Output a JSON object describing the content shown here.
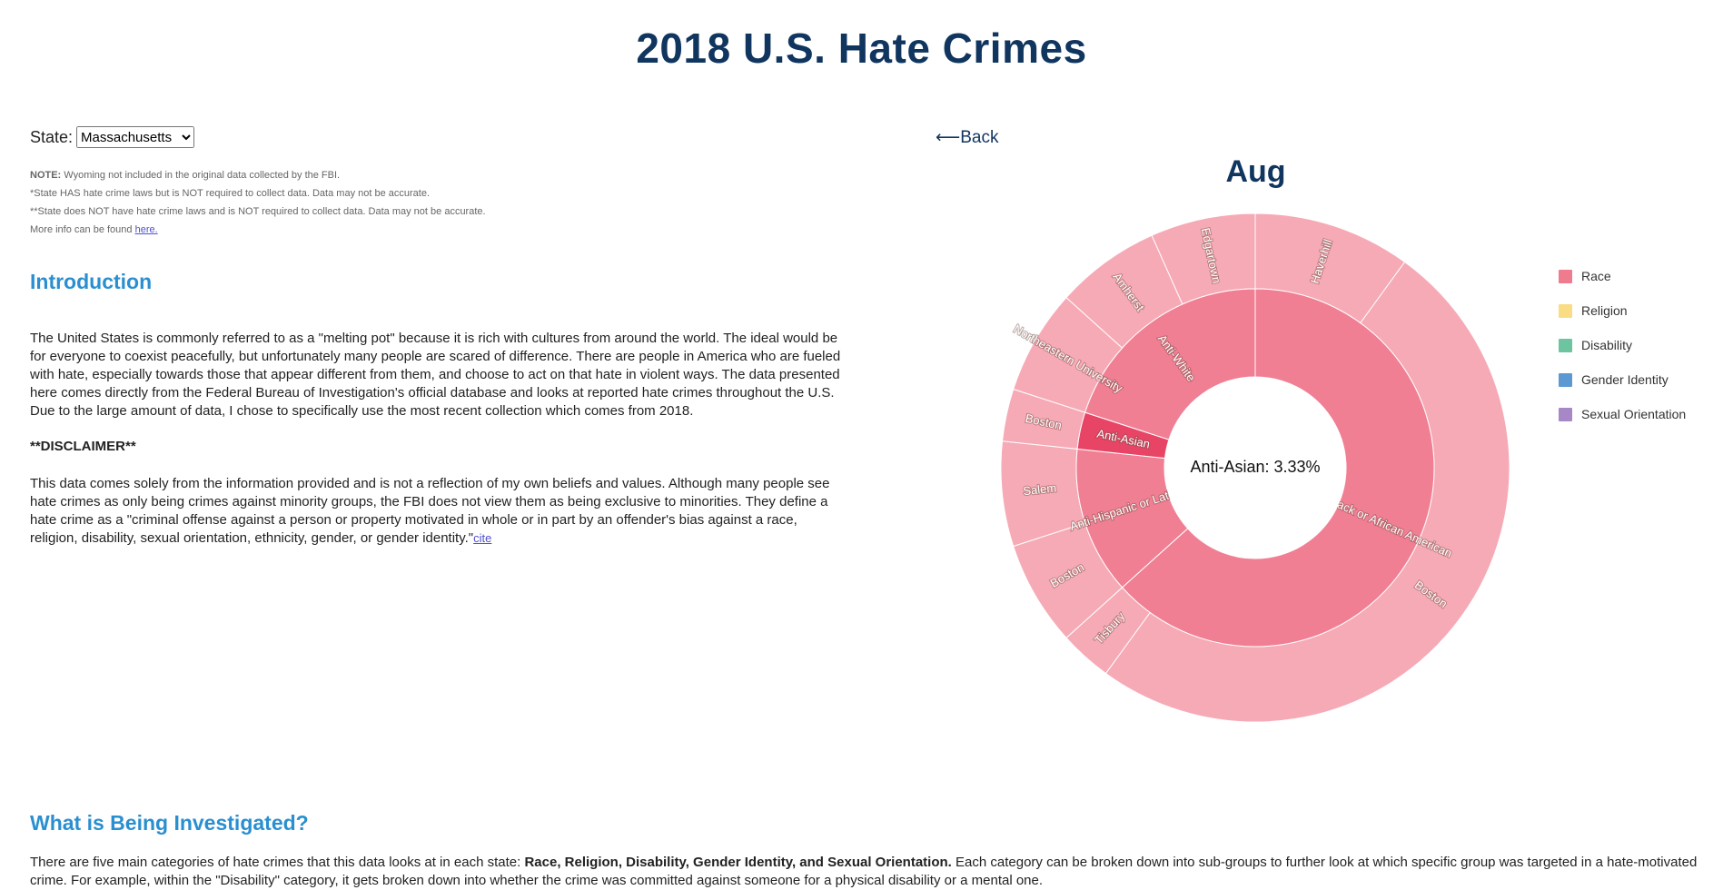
{
  "header": {
    "title": "2018 U.S. Hate Crimes"
  },
  "state_selector": {
    "label": "State:",
    "selected": "Massachusetts"
  },
  "notes": {
    "note_label": "NOTE:",
    "note_text": " Wyoming not included in the original data collected by the FBI.",
    "line2": "*State HAS hate crime laws but is NOT required to collect data. Data may not be accurate.",
    "line3": "**State does NOT have hate crime laws and is NOT required to collect data. Data may not be accurate.",
    "line4": "More info can be found ",
    "link": "here."
  },
  "intro": {
    "heading": "Introduction",
    "paragraph": "The United States is commonly referred to as a \"melting pot\" because it is rich with cultures from around the world. The ideal would be for everyone to coexist peacefully, but unfortunately many people are scared of difference. There are people in America who are fueled with hate, especially towards those that appear different from them, and choose to act on that hate in violent ways. The data presented here comes directly from the Federal Bureau of Investigation's official database and looks at reported hate crimes throughout the U.S. Due to the large amount of data, I chose to specifically use the most recent collection which comes from 2018.",
    "disclaimer": "**DISCLAIMER**",
    "disclaimer_text": "This data comes solely from the information provided and is not a reflection of my own beliefs and values. Although many people see hate crimes as only being crimes against minority groups, the FBI does not view them as being exclusive to minorities. They define a hate crime as a \"criminal offense against a person or property motivated in whole or in part by an offender's bias against a race, religion, disability, sexual orientation, ethnicity, gender, or gender identity.\"",
    "cite": "cite"
  },
  "investigated": {
    "heading": "What is Being Investigated?",
    "p_start": "There are five main categories of hate crimes that this data looks at in each state: ",
    "p_bold": "Race, Religion, Disability, Gender Identity, and Sexual Orientation.",
    "p_end": " Each category can be broken down into sub-groups to further look at which specific group was targeted in a hate-motivated crime. For example, within the \"Disability\" category, it gets broken down into whether the crime was committed against someone for a physical disability or a mental one."
  },
  "nav": {
    "back": "⟵Back"
  },
  "colors": {
    "inner_ring": "#f07f93",
    "inner_highlight": "#e84466",
    "outer_ring": "#f6aab6",
    "title_navy": "#10355e",
    "heading_blue": "#2a8fd0"
  },
  "legend": [
    {
      "label": "Race",
      "color": "#ef7b8e"
    },
    {
      "label": "Religion",
      "color": "#f9dc84"
    },
    {
      "label": "Disability",
      "color": "#6cc5a0"
    },
    {
      "label": "Gender Identity",
      "color": "#5c98d2"
    },
    {
      "label": "Sexual Orientation",
      "color": "#a887c6"
    }
  ],
  "chart_data": {
    "type": "sunburst",
    "title": "Aug",
    "center_label": "Anti-Asian: 3.33%",
    "category": "Race",
    "inner": [
      {
        "name": "Anti-Black or African American",
        "value": 19,
        "highlight": false
      },
      {
        "name": "Anti-Hispanic or Latino",
        "value": 4,
        "highlight": false
      },
      {
        "name": "Anti-Asian",
        "value": 1,
        "highlight": true
      },
      {
        "name": "Anti-White",
        "value": 6,
        "highlight": false
      }
    ],
    "outer": [
      {
        "name": "Haverhill",
        "parent": "Anti-Black or African American",
        "value": 3
      },
      {
        "name": "Boston",
        "parent": "Anti-Black or African American",
        "value": 15
      },
      {
        "name": "Tisbury",
        "parent": "Anti-Black or African American",
        "value": 1
      },
      {
        "name": "Boston",
        "parent": "Anti-Hispanic or Latino",
        "value": 2
      },
      {
        "name": "Salem",
        "parent": "Anti-Hispanic or Latino",
        "value": 2
      },
      {
        "name": "Boston",
        "parent": "Anti-Asian",
        "value": 1
      },
      {
        "name": "Northeastern University",
        "parent": "Anti-White",
        "value": 2
      },
      {
        "name": "Amherst",
        "parent": "Anti-White",
        "value": 2
      },
      {
        "name": "Edgartown",
        "parent": "Anti-White",
        "value": 2
      }
    ]
  }
}
